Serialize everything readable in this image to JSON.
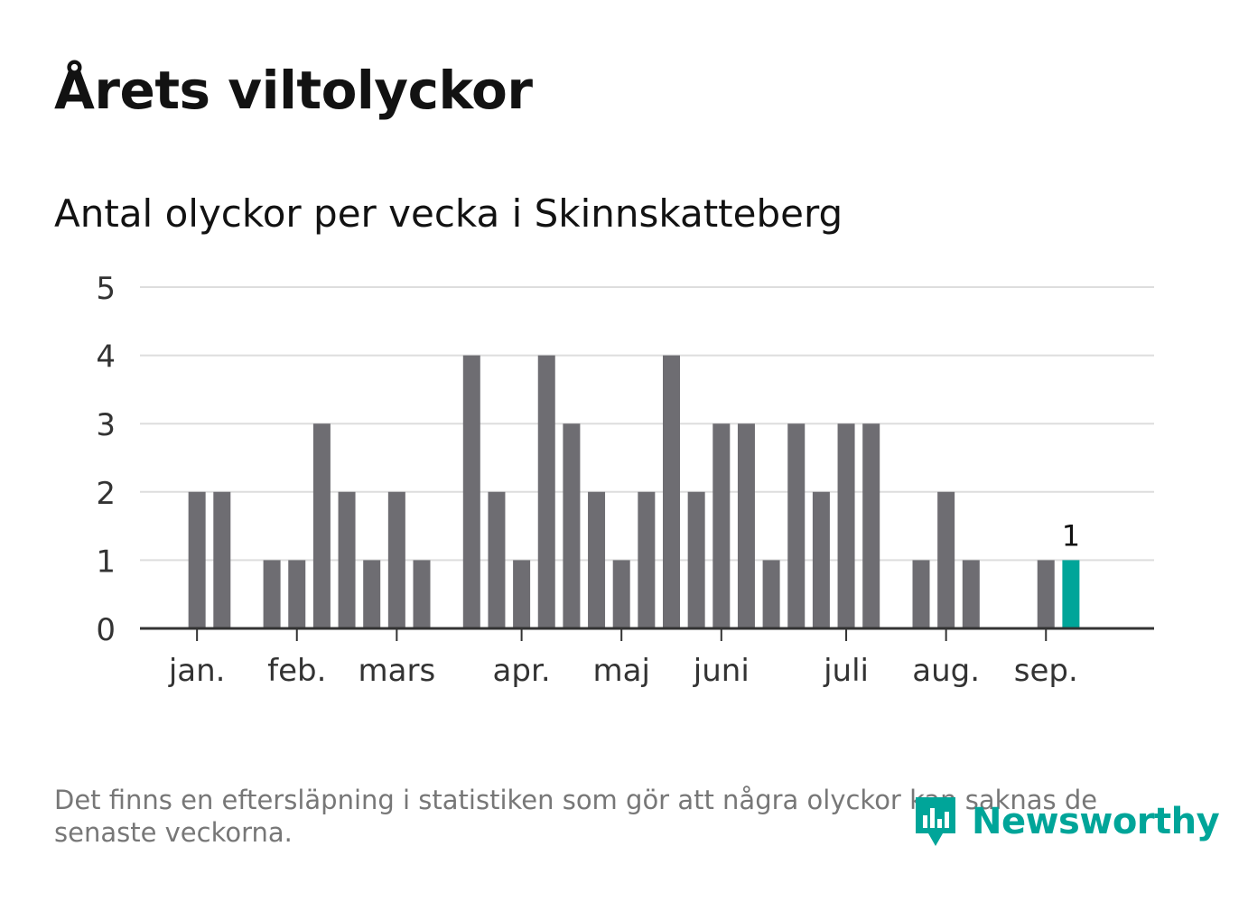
{
  "title": "Årets viltolyckor",
  "subtitle": "Antal olyckor per vecka i Skinnskatteberg",
  "footnote": "Det finns en eftersläpning i statistiken som gör att några olyckor kan saknas de senaste veckorna.",
  "brand": {
    "name": "Newsworthy",
    "icon": "newsworthy-logo-icon",
    "color": "#00a599"
  },
  "colors": {
    "bar": "#6e6d72",
    "highlight": "#00a599",
    "grid": "#dddddd",
    "axis": "#333333",
    "text": "#333333"
  },
  "chart_data": {
    "type": "bar",
    "title": "Antal olyckor per vecka i Skinnskatteberg",
    "xlabel": "",
    "ylabel": "",
    "ylim": [
      0,
      5
    ],
    "yticks": [
      0,
      1,
      2,
      3,
      4,
      5
    ],
    "grid": true,
    "legend": "none",
    "series": [
      {
        "values": [
          0,
          2,
          2,
          0,
          1,
          1,
          3,
          2,
          1,
          2,
          1,
          0,
          4,
          2,
          1,
          4,
          3,
          2,
          1,
          2,
          4,
          2,
          3,
          3,
          1,
          3,
          2,
          3,
          3,
          0,
          1,
          2,
          1,
          0,
          0,
          1,
          1
        ]
      }
    ],
    "highlight_index": 36,
    "highlight_label": "1",
    "month_labels": [
      {
        "label": "jan.",
        "week": 1
      },
      {
        "label": "feb.",
        "week": 5
      },
      {
        "label": "mars",
        "week": 9
      },
      {
        "label": "apr.",
        "week": 14
      },
      {
        "label": "maj",
        "week": 18
      },
      {
        "label": "juni",
        "week": 22
      },
      {
        "label": "juli",
        "week": 27
      },
      {
        "label": "aug.",
        "week": 31
      },
      {
        "label": "sep.",
        "week": 35
      }
    ]
  }
}
